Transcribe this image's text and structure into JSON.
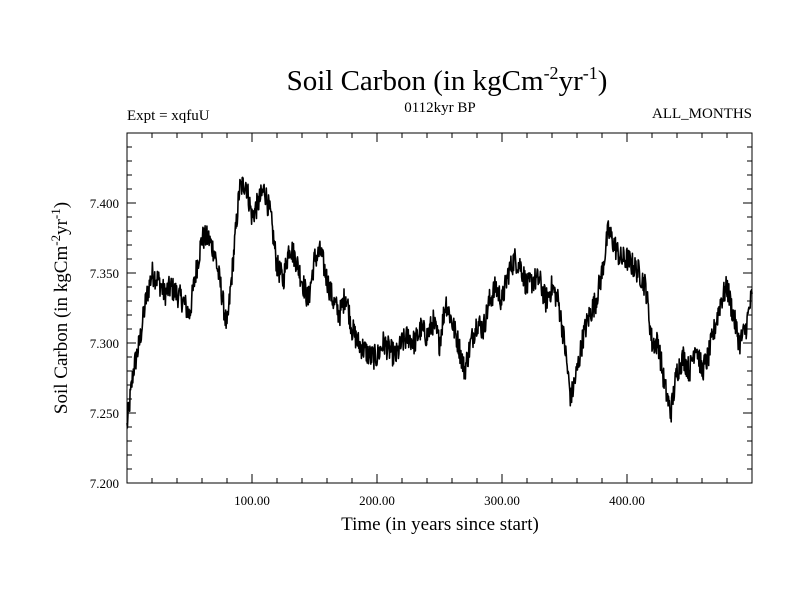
{
  "chart_data": {
    "type": "line",
    "title": {
      "main": "Soil Carbon (in kgCm",
      "exp1": "-2",
      "mid": "yr",
      "exp2": "-1",
      "close": ")"
    },
    "subtitle_left": "Expt = xqfuU",
    "subtitle_center": "0112kyr BP",
    "subtitle_right": "ALL_MONTHS",
    "xlabel": "Time (in years since start)",
    "ylabel": {
      "main": "Soil Carbon (in kgCm",
      "exp1": "-2",
      "mid": "yr",
      "exp2": "-1",
      "close": ")"
    },
    "xlim": [
      0,
      500
    ],
    "ylim": [
      7.2,
      7.45
    ],
    "x_ticks": [
      100,
      200,
      300,
      400
    ],
    "x_tick_labels": [
      "100.00",
      "200.00",
      "300.00",
      "400.00"
    ],
    "y_ticks": [
      7.2,
      7.25,
      7.3,
      7.35,
      7.4
    ],
    "y_tick_labels": [
      "7.200",
      "7.250",
      "7.300",
      "7.350",
      "7.400"
    ],
    "line_color": "#000000",
    "series": [
      {
        "x": [
          0,
          5,
          10,
          15,
          20,
          25,
          30,
          35,
          40,
          45,
          50,
          55,
          60,
          65,
          70,
          75,
          80,
          85,
          90,
          95,
          100,
          105,
          110,
          115,
          120,
          125,
          130,
          135,
          140,
          145,
          150,
          155,
          160,
          165,
          170,
          175,
          180,
          185,
          190,
          195,
          200,
          205,
          210,
          215,
          220,
          225,
          230,
          235,
          240,
          245,
          250,
          255,
          260,
          265,
          270,
          275,
          280,
          285,
          290,
          295,
          300,
          305,
          310,
          315,
          320,
          325,
          330,
          335,
          340,
          345,
          350,
          355,
          360,
          365,
          370,
          375,
          380,
          385,
          390,
          395,
          400,
          405,
          410,
          415,
          420,
          425,
          430,
          435,
          440,
          445,
          450,
          455,
          460,
          465,
          470,
          475,
          480,
          485,
          490,
          495,
          500
        ],
        "y": [
          7.24,
          7.28,
          7.3,
          7.33,
          7.35,
          7.345,
          7.335,
          7.34,
          7.335,
          7.33,
          7.32,
          7.35,
          7.375,
          7.375,
          7.365,
          7.34,
          7.31,
          7.36,
          7.41,
          7.415,
          7.39,
          7.4,
          7.41,
          7.39,
          7.355,
          7.345,
          7.37,
          7.36,
          7.345,
          7.33,
          7.36,
          7.365,
          7.345,
          7.33,
          7.32,
          7.335,
          7.31,
          7.3,
          7.295,
          7.29,
          7.29,
          7.3,
          7.295,
          7.29,
          7.3,
          7.305,
          7.3,
          7.31,
          7.305,
          7.315,
          7.3,
          7.33,
          7.315,
          7.3,
          7.28,
          7.3,
          7.315,
          7.31,
          7.33,
          7.34,
          7.33,
          7.35,
          7.36,
          7.355,
          7.34,
          7.345,
          7.345,
          7.33,
          7.34,
          7.33,
          7.3,
          7.26,
          7.28,
          7.305,
          7.32,
          7.33,
          7.35,
          7.38,
          7.37,
          7.36,
          7.36,
          7.355,
          7.35,
          7.34,
          7.3,
          7.3,
          7.27,
          7.25,
          7.28,
          7.29,
          7.28,
          7.3,
          7.28,
          7.29,
          7.31,
          7.33,
          7.34,
          7.32,
          7.3,
          7.31,
          7.335
        ]
      }
    ]
  }
}
